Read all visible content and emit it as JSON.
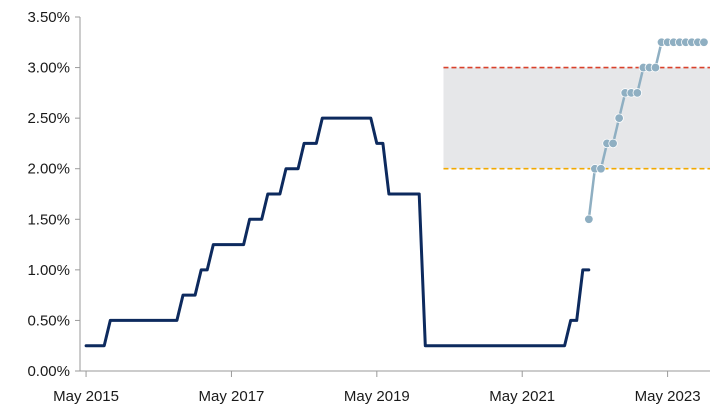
{
  "chart_data": {
    "type": "line",
    "title": "",
    "xlabel": "",
    "ylabel": "",
    "ylim": [
      0,
      3.5
    ],
    "grid": false,
    "legend": "none",
    "y_ticks": [
      {
        "value": 0.0,
        "label": "0.00%"
      },
      {
        "value": 0.5,
        "label": "0.50%"
      },
      {
        "value": 1.0,
        "label": "1.00%"
      },
      {
        "value": 1.5,
        "label": "1.50%"
      },
      {
        "value": 2.0,
        "label": "2.00%"
      },
      {
        "value": 2.5,
        "label": "2.50%"
      },
      {
        "value": 3.0,
        "label": "3.00%"
      },
      {
        "value": 3.5,
        "label": "3.50%"
      }
    ],
    "x_range": [
      "2015-04",
      "2023-12"
    ],
    "x_ticks": [
      {
        "date": "2015-05",
        "label": "May 2015"
      },
      {
        "date": "2017-05",
        "label": "May 2017"
      },
      {
        "date": "2019-05",
        "label": "May 2019"
      },
      {
        "date": "2021-05",
        "label": "May 2021"
      },
      {
        "date": "2023-05",
        "label": "May 2023"
      }
    ],
    "band": {
      "low": 2.0,
      "high": 3.0,
      "fill": "#e6e7e9",
      "start": "2020-04",
      "end": "2023-12"
    },
    "reference_lines": [
      {
        "value": 3.0,
        "color": "#d9412b",
        "start": "2020-04",
        "end": "2023-12"
      },
      {
        "value": 2.0,
        "color": "#f2a900",
        "start": "2020-04",
        "end": "2023-12"
      }
    ],
    "series": [
      {
        "style": "step-line",
        "color": "#0d2a5e",
        "points": [
          [
            "2015-05",
            0.25
          ],
          [
            "2015-08",
            0.25
          ],
          [
            "2015-09",
            0.5
          ],
          [
            "2016-08",
            0.5
          ],
          [
            "2016-09",
            0.75
          ],
          [
            "2016-11",
            0.75
          ],
          [
            "2016-12",
            1.0
          ],
          [
            "2017-01",
            1.0
          ],
          [
            "2017-02",
            1.25
          ],
          [
            "2017-07",
            1.25
          ],
          [
            "2017-08",
            1.5
          ],
          [
            "2017-10",
            1.5
          ],
          [
            "2017-11",
            1.75
          ],
          [
            "2018-01",
            1.75
          ],
          [
            "2018-02",
            2.0
          ],
          [
            "2018-04",
            2.0
          ],
          [
            "2018-05",
            2.25
          ],
          [
            "2018-07",
            2.25
          ],
          [
            "2018-08",
            2.5
          ],
          [
            "2019-04",
            2.5
          ],
          [
            "2019-05",
            2.25
          ],
          [
            "2019-06",
            2.25
          ],
          [
            "2019-07",
            1.75
          ],
          [
            "2019-12",
            1.75
          ],
          [
            "2020-01",
            0.25
          ],
          [
            "2021-12",
            0.25
          ],
          [
            "2022-01",
            0.5
          ],
          [
            "2022-02",
            0.5
          ],
          [
            "2022-03",
            1.0
          ],
          [
            "2022-04",
            1.0
          ]
        ]
      },
      {
        "style": "line-markers",
        "color": "#8fafc2",
        "points": [
          [
            "2022-04",
            1.5
          ],
          [
            "2022-05",
            2.0
          ],
          [
            "2022-06",
            2.0
          ],
          [
            "2022-07",
            2.25
          ],
          [
            "2022-08",
            2.25
          ],
          [
            "2022-09",
            2.5
          ],
          [
            "2022-10",
            2.75
          ],
          [
            "2022-11",
            2.75
          ],
          [
            "2022-12",
            2.75
          ],
          [
            "2023-01",
            3.0
          ],
          [
            "2023-02",
            3.0
          ],
          [
            "2023-03",
            3.0
          ],
          [
            "2023-04",
            3.25
          ],
          [
            "2023-05",
            3.25
          ],
          [
            "2023-06",
            3.25
          ],
          [
            "2023-07",
            3.25
          ],
          [
            "2023-08",
            3.25
          ],
          [
            "2023-09",
            3.25
          ],
          [
            "2023-10",
            3.25
          ],
          [
            "2023-11",
            3.25
          ]
        ]
      }
    ]
  }
}
